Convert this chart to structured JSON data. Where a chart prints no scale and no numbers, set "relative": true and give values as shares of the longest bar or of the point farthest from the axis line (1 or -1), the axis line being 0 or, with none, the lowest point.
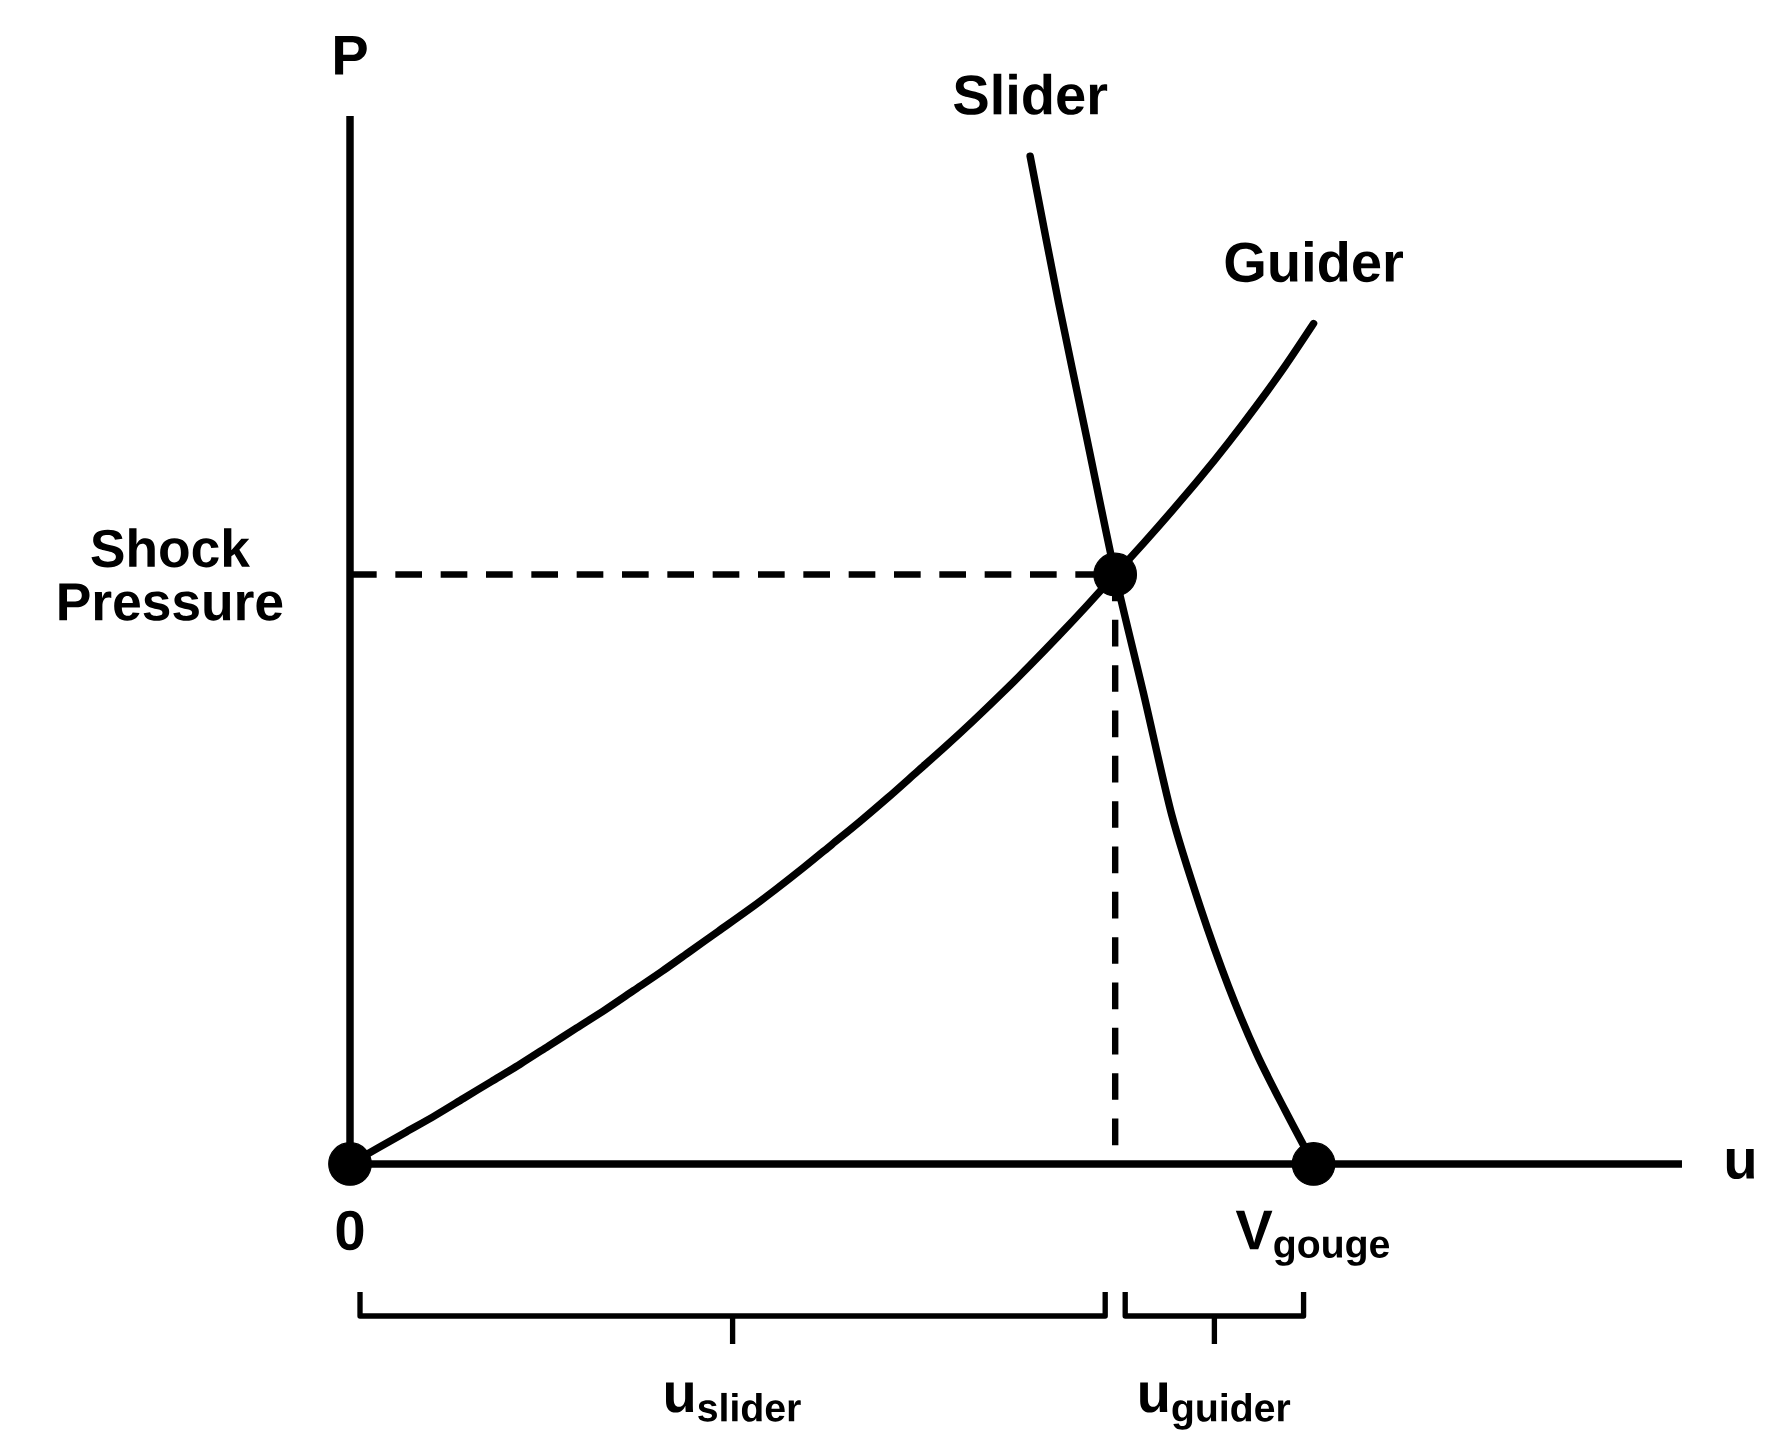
{
  "chart_data": {
    "type": "line",
    "relative": true,
    "xlabel": "u",
    "ylabel": "P",
    "categories": [
      "0",
      null,
      null,
      null,
      null,
      null,
      null,
      null,
      null,
      null,
      null,
      null,
      null,
      null,
      null,
      null,
      null,
      null,
      null,
      null,
      null,
      null,
      null,
      null,
      null,
      null,
      null,
      null,
      null,
      null,
      null,
      null,
      null,
      null,
      "V$_{gouge}$",
      null,
      null,
      null,
      null,
      null,
      null,
      null,
      null,
      null,
      null,
      null,
      null,
      null
    ],
    "series": [
      {
        "name": "Slider",
        "color": "#000000",
        "values": [
          null,
          null,
          null,
          null,
          null,
          null,
          null,
          null,
          null,
          null,
          null,
          null,
          null,
          null,
          null,
          null,
          null,
          null,
          null,
          null,
          null,
          null,
          null,
          null,
          1.0,
          0.855,
          0.72,
          0.585,
          0.467,
          0.346,
          0.255,
          0.176,
          0.109,
          0.053,
          0,
          null,
          null,
          null,
          null,
          null,
          null,
          null,
          null,
          null,
          null,
          null,
          null,
          null
        ]
      },
      {
        "name": "Guider",
        "color": "#000000",
        "values": [
          0,
          0.016,
          0.032,
          0.048,
          0.065,
          0.082,
          0.099,
          0.117,
          0.135,
          0.153,
          0.172,
          0.191,
          0.211,
          0.231,
          0.251,
          0.272,
          0.294,
          0.317,
          0.34,
          0.364,
          0.389,
          0.414,
          0.44,
          0.467,
          0.495,
          0.524,
          0.554,
          0.585,
          0.616,
          0.648,
          0.681,
          0.716,
          0.753,
          0.792,
          0.834,
          null,
          null,
          null,
          null,
          null,
          null,
          null,
          null,
          null,
          null,
          null,
          null,
          null
        ]
      },
      {
        "type": "scatter",
        "color": "#000000",
        "marker": "circle",
        "values": [
          0,
          null,
          null,
          null,
          null,
          null,
          null,
          null,
          null,
          null,
          null,
          null,
          null,
          null,
          null,
          null,
          null,
          null,
          null,
          null,
          null,
          null,
          null,
          null,
          null,
          null,
          null,
          0.585,
          null,
          null,
          null,
          null,
          null,
          null,
          0,
          null,
          null,
          null,
          null,
          null,
          null,
          null,
          null,
          null,
          null,
          null,
          null,
          null
        ]
      }
    ],
    "ref_lines": [
      {
        "axis": "y",
        "value": 0.585,
        "label": "Shock Pressure",
        "line_style": "dashed"
      }
    ],
    "annotations": [
      "u$_{slider}$",
      "u$_{guider}$"
    ]
  }
}
